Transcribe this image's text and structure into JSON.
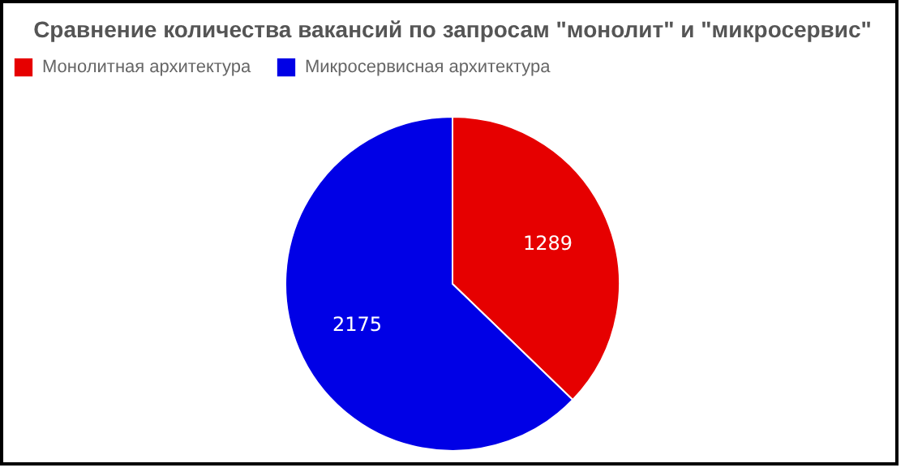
{
  "chart_data": {
    "type": "pie",
    "title": "Сравнение количества вакансий по запросам \"монолит\" и \"микросервис\"",
    "categories": [
      "Монолитная архитектура",
      "Микросервисная архитектура"
    ],
    "values": [
      1289,
      2175
    ],
    "colors": [
      "#e60000",
      "#0000e6"
    ],
    "data_labels": true,
    "legend": "top"
  }
}
